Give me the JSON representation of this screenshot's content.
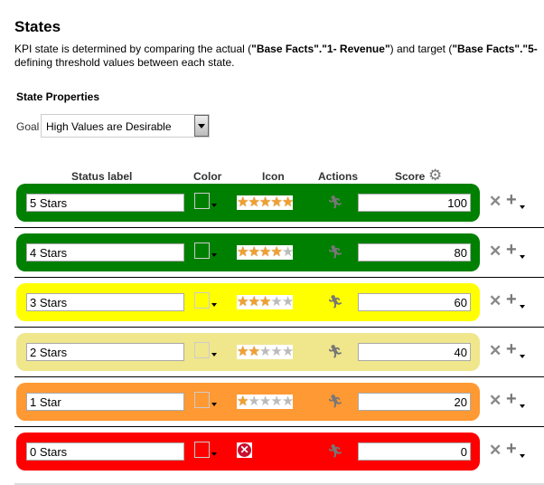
{
  "title": "States",
  "description": {
    "line1_a": "KPI state is determined by comparing the actual (",
    "line1_b": "\"Base Facts\".\"1- Revenue\"",
    "line1_c": ") and target (",
    "line1_d": "\"Base Facts\".\"5-",
    "line2": "defining threshold values between each state."
  },
  "state_properties": "State Properties",
  "goal": {
    "label": "Goal",
    "value": "High Values are Desirable"
  },
  "headers": {
    "status_label": "Status label",
    "color": "Color",
    "icon": "Icon",
    "actions": "Actions",
    "score": "Score"
  },
  "states": [
    {
      "label": "5 Stars",
      "color": "#008000",
      "stars": 5,
      "score": "100"
    },
    {
      "label": "4 Stars",
      "color": "#008000",
      "stars": 4,
      "score": "80"
    },
    {
      "label": "3 Stars",
      "color": "#ffff00",
      "stars": 3,
      "score": "60"
    },
    {
      "label": "2 Stars",
      "color": "#f0e68c",
      "stars": 2,
      "score": "40"
    },
    {
      "label": "1 Star",
      "color": "#ff9933",
      "stars": 1,
      "score": "20"
    },
    {
      "label": "0 Stars",
      "color": "#ff0000",
      "stars": 0,
      "icon": "no-state-icon",
      "score": "0"
    }
  ]
}
